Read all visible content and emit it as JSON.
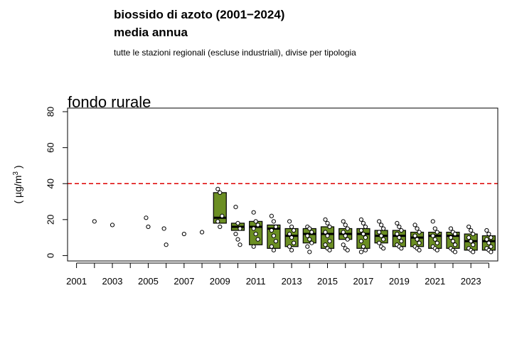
{
  "header": {
    "title_line1": "biossido di azoto (2001−2024)",
    "title_line2": "media annua",
    "subtitle": "tutte le stazioni regionali (escluse industriali), divise per tipologia"
  },
  "chart_data": {
    "type": "boxplot",
    "panel_title": "fondo rurale",
    "ylabel": "( µg/m³ )",
    "ylabel_main": "( µg/m",
    "ylabel_sup": "3",
    "ylabel_end": " )",
    "x_ticks": [
      "2001",
      "2003",
      "2005",
      "2007",
      "2009",
      "2011",
      "2013",
      "2015",
      "2017",
      "2019",
      "2021",
      "2023"
    ],
    "y_ticks": [
      "0",
      "20",
      "40",
      "60",
      "80"
    ],
    "ylim": [
      -3,
      82
    ],
    "xlim": [
      2000.5,
      2024.5
    ],
    "limit_line": {
      "value": 40,
      "color": "#dd0000",
      "style": "dashed"
    },
    "box_color": "#6b8e23",
    "grid": false,
    "years": [
      2001,
      2002,
      2003,
      2004,
      2005,
      2006,
      2007,
      2008,
      2009,
      2010,
      2011,
      2012,
      2013,
      2014,
      2015,
      2016,
      2017,
      2018,
      2019,
      2020,
      2021,
      2022,
      2023,
      2024
    ],
    "boxes": [
      {
        "year": 2009,
        "q1": 18,
        "median": 21,
        "q3": 35
      },
      {
        "year": 2010,
        "q1": 14,
        "median": 16,
        "q3": 18
      },
      {
        "year": 2011,
        "q1": 6,
        "median": 16,
        "q3": 19
      },
      {
        "year": 2012,
        "q1": 4,
        "median": 15,
        "q3": 17
      },
      {
        "year": 2013,
        "q1": 5,
        "median": 11,
        "q3": 15
      },
      {
        "year": 2014,
        "q1": 7,
        "median": 12,
        "q3": 15
      },
      {
        "year": 2015,
        "q1": 4,
        "median": 12,
        "q3": 16
      },
      {
        "year": 2016,
        "q1": 9,
        "median": 12,
        "q3": 15
      },
      {
        "year": 2017,
        "q1": 4,
        "median": 12,
        "q3": 15
      },
      {
        "year": 2018,
        "q1": 7,
        "median": 11,
        "q3": 14
      },
      {
        "year": 2019,
        "q1": 5,
        "median": 11,
        "q3": 14
      },
      {
        "year": 2020,
        "q1": 5,
        "median": 10,
        "q3": 13
      },
      {
        "year": 2021,
        "q1": 4,
        "median": 11,
        "q3": 13
      },
      {
        "year": 2022,
        "q1": 4,
        "median": 11,
        "q3": 13
      },
      {
        "year": 2023,
        "q1": 3,
        "median": 8,
        "q3": 12
      },
      {
        "year": 2024,
        "q1": 3,
        "median": 8,
        "q3": 11
      }
    ],
    "points": [
      {
        "year": 2002,
        "values": [
          19
        ]
      },
      {
        "year": 2003,
        "values": [
          17
        ]
      },
      {
        "year": 2005,
        "values": [
          21,
          16
        ]
      },
      {
        "year": 2006,
        "values": [
          15,
          6
        ]
      },
      {
        "year": 2007,
        "values": [
          12
        ]
      },
      {
        "year": 2008,
        "values": [
          13
        ]
      },
      {
        "year": 2009,
        "values": [
          37,
          35,
          22,
          19,
          16
        ]
      },
      {
        "year": 2010,
        "values": [
          27,
          18,
          15,
          12,
          9,
          6
        ]
      },
      {
        "year": 2011,
        "values": [
          24,
          19,
          17,
          15,
          12,
          9,
          5
        ]
      },
      {
        "year": 2012,
        "values": [
          22,
          19,
          16,
          14,
          11,
          8,
          5,
          3
        ]
      },
      {
        "year": 2013,
        "values": [
          19,
          16,
          14,
          12,
          10,
          7,
          5,
          3
        ]
      },
      {
        "year": 2014,
        "values": [
          16,
          15,
          13,
          11,
          9,
          7,
          5,
          2
        ]
      },
      {
        "year": 2015,
        "values": [
          20,
          18,
          16,
          13,
          11,
          8,
          6,
          4,
          3
        ]
      },
      {
        "year": 2016,
        "values": [
          19,
          17,
          15,
          13,
          11,
          9,
          6,
          4,
          3
        ]
      },
      {
        "year": 2017,
        "values": [
          20,
          18,
          16,
          14,
          12,
          10,
          8,
          5,
          3,
          2
        ]
      },
      {
        "year": 2018,
        "values": [
          19,
          17,
          15,
          13,
          11,
          9,
          7,
          5,
          4
        ]
      },
      {
        "year": 2019,
        "values": [
          18,
          16,
          14,
          12,
          10,
          8,
          6,
          5,
          4
        ]
      },
      {
        "year": 2020,
        "values": [
          17,
          15,
          13,
          11,
          9,
          7,
          5,
          4,
          3
        ]
      },
      {
        "year": 2021,
        "values": [
          19,
          15,
          13,
          11,
          9,
          7,
          5,
          4,
          3
        ]
      },
      {
        "year": 2022,
        "values": [
          15,
          13,
          12,
          10,
          8,
          6,
          4,
          3,
          2
        ]
      },
      {
        "year": 2023,
        "values": [
          16,
          14,
          12,
          10,
          8,
          6,
          4,
          3,
          2
        ]
      },
      {
        "year": 2024,
        "values": [
          14,
          12,
          10,
          9,
          7,
          5,
          4,
          3,
          2
        ]
      }
    ]
  }
}
